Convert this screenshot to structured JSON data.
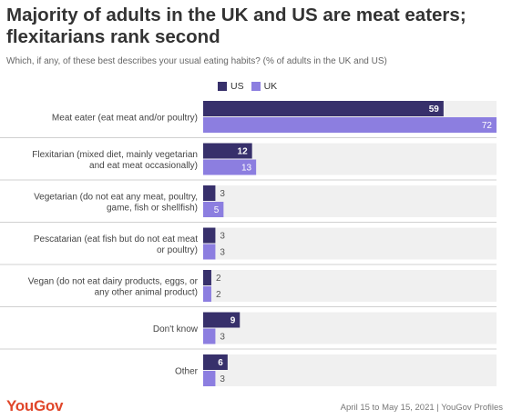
{
  "title": "Majority of adults in the UK and US are meat eaters; flexitarians rank second",
  "subtitle": "Which, if any, of these best describes your usual eating habits? (% of adults in the UK and US)",
  "logo": "YouGov",
  "source": "April 15 to May 15, 2021 | YouGov Profiles",
  "colors": {
    "us": "#37306b",
    "uk": "#8c7ee0",
    "row_bg": "#f0f0f0",
    "separator": "#d0d0d0"
  },
  "chart_data": {
    "type": "bar",
    "orientation": "horizontal",
    "categories": [
      [
        "Meat eater (eat meat and/or poultry)"
      ],
      [
        "Flexitarian (mixed diet, mainly vegetarian",
        "and eat meat occasionally)"
      ],
      [
        "Vegetarian (do not eat any meat, poultry,",
        "game, fish or shellfish)"
      ],
      [
        "Pescatarian (eat fish but do not eat meat",
        "or poultry)"
      ],
      [
        "Vegan (do not eat dairy products, eggs, or",
        "any other animal product)"
      ],
      [
        "Don't know"
      ],
      [
        "Other"
      ]
    ],
    "series": [
      {
        "name": "US",
        "values": [
          59,
          12,
          3,
          3,
          2,
          9,
          6
        ]
      },
      {
        "name": "UK",
        "values": [
          72,
          13,
          5,
          3,
          2,
          3,
          3
        ]
      }
    ],
    "xlim": [
      0,
      72
    ],
    "legend": "top",
    "grid": false
  }
}
